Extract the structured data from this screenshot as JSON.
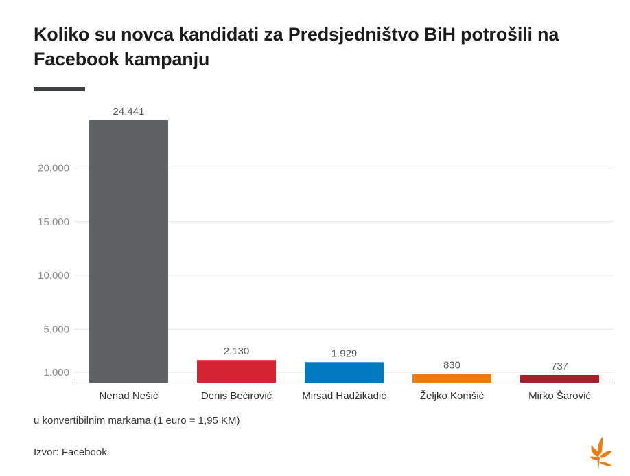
{
  "title": "Koliko su novca kandidati za Predsjedništvo BiH potrošili na Facebook kampanju",
  "note": "u konvertibilnim markama (1 euro = 1,95 KM)",
  "source": "Izvor: Facebook",
  "logo_icon": "rferl-flame-logo-icon",
  "chart_data": {
    "type": "bar",
    "title": "Koliko su novca kandidati za Predsjedništvo BiH potrošili na Facebook kampanju",
    "xlabel": "",
    "ylabel": "",
    "categories": [
      "Nenad Nešić",
      "Denis Bećirović",
      "Mirsad Hadžikadić",
      "Željko Komšić",
      "Mirko Šarović"
    ],
    "values": [
      24441,
      2130,
      1929,
      830,
      737
    ],
    "value_labels": [
      "24.441",
      "2.130",
      "1.929",
      "830",
      "737"
    ],
    "colors": [
      "#5f6264",
      "#d42434",
      "#0079be",
      "#f07a0a",
      "#a5212b"
    ],
    "yticks": [
      1000,
      5000,
      10000,
      15000,
      20000
    ],
    "ytick_labels": [
      "1.000",
      "5.000",
      "10.000",
      "15.000",
      "20.000"
    ],
    "ylim": [
      0,
      24441
    ],
    "grid": true,
    "legend": "none"
  }
}
